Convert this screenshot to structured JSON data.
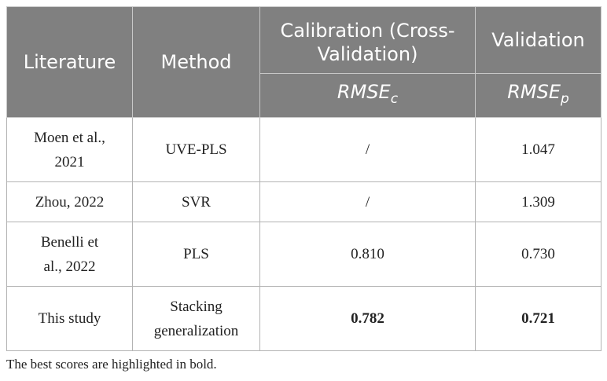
{
  "table": {
    "headers": {
      "literature": "Literature",
      "method": "Method",
      "calibration": "Calibration (Cross-Validation)",
      "validation": "Validation",
      "rmse_c": "RMSEc",
      "rmse_p": "RMSEp"
    },
    "rows": [
      {
        "literature": "Moen et al., 2021",
        "method": "UVE-PLS",
        "rmse_c": "/",
        "rmse_p": "1.047"
      },
      {
        "literature": "Zhou, 2022",
        "method": "SVR",
        "rmse_c": "/",
        "rmse_p": "1.309"
      },
      {
        "literature": "Benelli et al., 2022",
        "method": "PLS",
        "rmse_c": "0.810",
        "rmse_p": "0.730"
      },
      {
        "literature": "This study",
        "method": "Stacking generalization",
        "rmse_c": "0.782",
        "rmse_p": "0.721"
      }
    ]
  },
  "footnote": "The best scores are highlighted in bold.",
  "colors": {
    "header_bg": "#808080",
    "header_text": "#ffffff",
    "link_text": "#3aa845"
  }
}
